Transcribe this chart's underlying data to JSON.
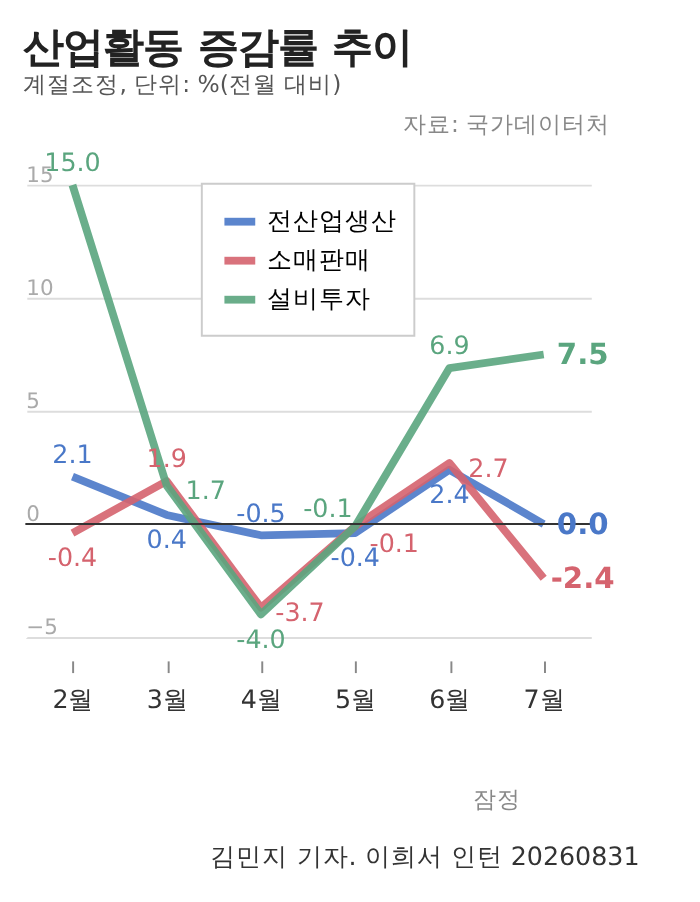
{
  "chart_data": {
    "type": "line",
    "title": "산업활동 증감률 추이",
    "subtitle": "계절조정, 단위: %(전월 대비)",
    "categories": [
      "2월",
      "3월",
      "4월",
      "5월",
      "6월",
      "7월"
    ],
    "series": [
      {
        "name": "전산업생산",
        "color": "#4a78c8",
        "values": [
          2.1,
          0.4,
          -0.5,
          -0.4,
          2.4,
          0.0
        ],
        "value_labels": [
          "2.1",
          "0.4",
          "-0.5",
          "-0.4",
          "2.4",
          "0.0"
        ]
      },
      {
        "name": "소매판매",
        "color": "#d5636e",
        "values": [
          -0.4,
          1.9,
          -3.7,
          -0.1,
          2.7,
          -2.4
        ],
        "value_labels": [
          "-0.4",
          "1.9",
          "-3.7",
          "-0.1",
          "2.7",
          "-2.4"
        ]
      },
      {
        "name": "설비투자",
        "color": "#5aa57e",
        "values": [
          15.0,
          1.7,
          -4.0,
          -0.1,
          6.9,
          7.5
        ],
        "value_labels": [
          "15.0",
          "1.7",
          "-4.0",
          "-0.1",
          "6.9",
          "7.5"
        ]
      }
    ],
    "ylim": [
      -5,
      17
    ],
    "yticks": [
      -5,
      0,
      5,
      10,
      15
    ],
    "grid": "y",
    "legend": "top",
    "marker": "none",
    "line_style": "solid",
    "data_labels": true,
    "ref_lines": [
      {
        "axis": "y",
        "value": 0,
        "color": "#333333"
      }
    ],
    "annotations": [
      "자료: 국가데이터처",
      "잠정",
      "김민지 기자. 이희서 인턴 20260831"
    ]
  }
}
